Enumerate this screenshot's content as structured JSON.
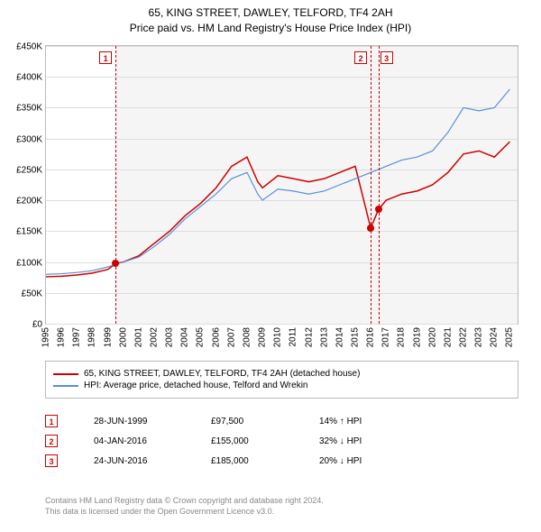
{
  "title": {
    "line1": "65, KING STREET, DAWLEY, TELFORD, TF4 2AH",
    "line2": "Price paid vs. HM Land Registry's House Price Index (HPI)",
    "fontsize": 12,
    "color": "#000000"
  },
  "chart": {
    "type": "line",
    "background_color": "#ffffff",
    "shaded_background_color": "#f5f5f5",
    "shaded_start_year": 1999.5,
    "grid_color": "#dddddd",
    "border_color": "#bbbbbb",
    "x_axis": {
      "min": 1995,
      "max": 2025.5,
      "ticks": [
        1995,
        1996,
        1997,
        1998,
        1999,
        2000,
        2001,
        2002,
        2003,
        2004,
        2005,
        2006,
        2007,
        2008,
        2009,
        2010,
        2011,
        2012,
        2013,
        2014,
        2015,
        2016,
        2017,
        2018,
        2019,
        2020,
        2021,
        2022,
        2023,
        2024,
        2025
      ],
      "label_fontsize": 10,
      "label_rotation": -90
    },
    "y_axis": {
      "min": 0,
      "max": 450000,
      "tick_step": 50000,
      "tick_labels": [
        "£0",
        "£50K",
        "£100K",
        "£150K",
        "£200K",
        "£250K",
        "£300K",
        "£350K",
        "£400K",
        "£450K"
      ],
      "label_fontsize": 10
    },
    "series": [
      {
        "name": "65, KING STREET, DAWLEY, TELFORD, TF4 2AH (detached house)",
        "color": "#cc0000",
        "line_width": 1.5,
        "x": [
          1995,
          1996,
          1997,
          1998,
          1999,
          1999.5,
          2000,
          2001,
          2002,
          2003,
          2004,
          2005,
          2006,
          2007,
          2008,
          2008.7,
          2009,
          2010,
          2011,
          2012,
          2013,
          2014,
          2015,
          2016,
          2016.5,
          2017,
          2018,
          2019,
          2020,
          2021,
          2022,
          2023,
          2024,
          2025
        ],
        "y": [
          76000,
          77000,
          79000,
          82000,
          88000,
          97500,
          100000,
          110000,
          130000,
          150000,
          175000,
          195000,
          220000,
          255000,
          270000,
          230000,
          220000,
          240000,
          235000,
          230000,
          235000,
          245000,
          255000,
          155000,
          185000,
          200000,
          210000,
          215000,
          225000,
          245000,
          275000,
          280000,
          270000,
          295000
        ]
      },
      {
        "name": "HPI: Average price, detached house, Telford and Wrekin",
        "color": "#5b8fd6",
        "line_width": 1.2,
        "x": [
          1995,
          1996,
          1997,
          1998,
          1999,
          2000,
          2001,
          2002,
          2003,
          2004,
          2005,
          2006,
          2007,
          2008,
          2008.7,
          2009,
          2010,
          2011,
          2012,
          2013,
          2014,
          2015,
          2016,
          2017,
          2018,
          2019,
          2020,
          2021,
          2022,
          2023,
          2024,
          2025
        ],
        "y": [
          80000,
          81000,
          83000,
          86000,
          92000,
          100000,
          108000,
          125000,
          145000,
          170000,
          190000,
          210000,
          235000,
          245000,
          210000,
          200000,
          218000,
          215000,
          210000,
          215000,
          225000,
          235000,
          245000,
          255000,
          265000,
          270000,
          280000,
          310000,
          350000,
          345000,
          350000,
          380000
        ]
      }
    ],
    "marker_lines": [
      {
        "label": "1",
        "year": 1999.5,
        "box_offset_x": -18
      },
      {
        "label": "2",
        "year": 2016.0,
        "box_offset_x": -18
      },
      {
        "label": "3",
        "year": 2016.5,
        "box_offset_x": 2
      }
    ],
    "marker_style": {
      "line_color": "#cc0000",
      "line_dash": "dashed",
      "box_border_color": "#cc0000",
      "box_text_color": "#cc0000",
      "box_size": 14,
      "box_fontsize": 9
    },
    "sale_points": [
      {
        "year": 1999.5,
        "price": 97500
      },
      {
        "year": 2016.0,
        "price": 155000
      },
      {
        "year": 2016.5,
        "price": 185000
      }
    ],
    "point_style": {
      "color": "#cc0000",
      "radius": 4
    }
  },
  "legend": {
    "border_color": "#bbbbbb",
    "fontsize": 10,
    "items": [
      {
        "color": "#cc0000",
        "label": "65, KING STREET, DAWLEY, TELFORD, TF4 2AH (detached house)"
      },
      {
        "color": "#5b8fd6",
        "label": "HPI: Average price, detached house, Telford and Wrekin"
      }
    ]
  },
  "events": {
    "fontsize": 10,
    "rows": [
      {
        "marker": "1",
        "date": "28-JUN-1999",
        "price": "£97,500",
        "delta": "14% ↑ HPI"
      },
      {
        "marker": "2",
        "date": "04-JAN-2016",
        "price": "£155,000",
        "delta": "32% ↓ HPI"
      },
      {
        "marker": "3",
        "date": "24-JUN-2016",
        "price": "£185,000",
        "delta": "20% ↓ HPI"
      }
    ]
  },
  "footer": {
    "line1": "Contains HM Land Registry data © Crown copyright and database right 2024.",
    "line2": "This data is licensed under the Open Government Licence v3.0.",
    "color": "#888888",
    "fontsize": 9
  }
}
